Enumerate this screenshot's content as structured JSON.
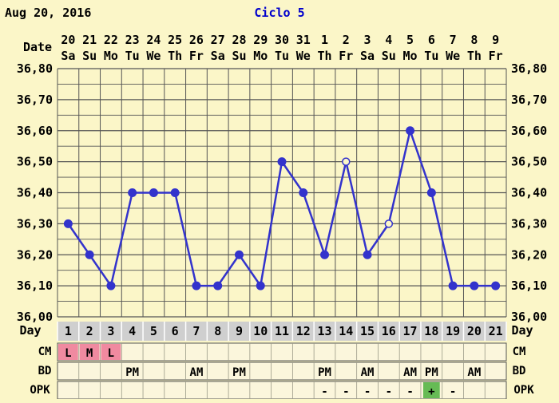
{
  "header": {
    "date": "Aug 20, 2016",
    "cycle": "Ciclo 5"
  },
  "labels": {
    "date": "Date",
    "day": "Day",
    "cm": "CM",
    "bd": "BD",
    "opk": "OPK"
  },
  "colors": {
    "background": "#fbf6c8",
    "grid": "#555555",
    "line": "#3333cc",
    "cycle_title": "#0000cc",
    "cm_fill": "#f08aa0",
    "opk_positive_fill": "#66bb55",
    "day_row_fill": "#cfcfcf",
    "cell_fill": "#fbf6dc"
  },
  "chart_data": {
    "type": "line",
    "title": "Ciclo 5",
    "x": [
      1,
      2,
      3,
      4,
      5,
      6,
      7,
      8,
      9,
      10,
      11,
      12,
      13,
      14,
      15,
      16,
      17,
      18,
      19,
      20,
      21
    ],
    "dates": [
      "20",
      "21",
      "22",
      "23",
      "24",
      "25",
      "26",
      "27",
      "28",
      "29",
      "30",
      "31",
      "1",
      "2",
      "3",
      "4",
      "5",
      "6",
      "7",
      "8",
      "9"
    ],
    "weekdays": [
      "Sa",
      "Su",
      "Mo",
      "Tu",
      "We",
      "Th",
      "Fr",
      "Sa",
      "Su",
      "Mo",
      "Tu",
      "We",
      "Th",
      "Fr",
      "Sa",
      "Su",
      "Mo",
      "Tu",
      "We",
      "Th",
      "Fr"
    ],
    "series": [
      {
        "values": [
          36.3,
          36.2,
          36.1,
          36.4,
          36.4,
          36.4,
          36.1,
          36.1,
          36.2,
          36.1,
          36.5,
          36.4,
          36.2,
          36.5,
          36.2,
          36.3,
          36.6,
          36.4,
          36.1,
          36.1,
          36.1
        ],
        "markers": [
          "filled",
          "filled",
          "filled",
          "filled",
          "filled",
          "filled",
          "filled",
          "filled",
          "filled",
          "filled",
          "filled",
          "filled",
          "filled",
          "open",
          "filled",
          "open",
          "filled",
          "filled",
          "filled",
          "filled",
          "filled"
        ]
      }
    ],
    "ylim": [
      36.0,
      36.8
    ],
    "yticks": [
      "36,00",
      "36,10",
      "36,20",
      "36,30",
      "36,40",
      "36,50",
      "36,60",
      "36,70",
      "36,80"
    ],
    "grid": true
  },
  "rows": {
    "cm": [
      "L",
      "M",
      "L",
      "",
      "",
      "",
      "",
      "",
      "",
      "",
      "",
      "",
      "",
      "",
      "",
      "",
      "",
      "",
      "",
      "",
      ""
    ],
    "bd": [
      "",
      "",
      "",
      "PM",
      "",
      "",
      "AM",
      "",
      "PM",
      "",
      "",
      "",
      "PM",
      "",
      "AM",
      "",
      "AM",
      "PM",
      "",
      "AM",
      ""
    ],
    "opk": [
      "",
      "",
      "",
      "",
      "",
      "",
      "",
      "",
      "",
      "",
      "",
      "",
      "-",
      "-",
      "-",
      "-",
      "-",
      "+",
      "-",
      "",
      ""
    ]
  }
}
